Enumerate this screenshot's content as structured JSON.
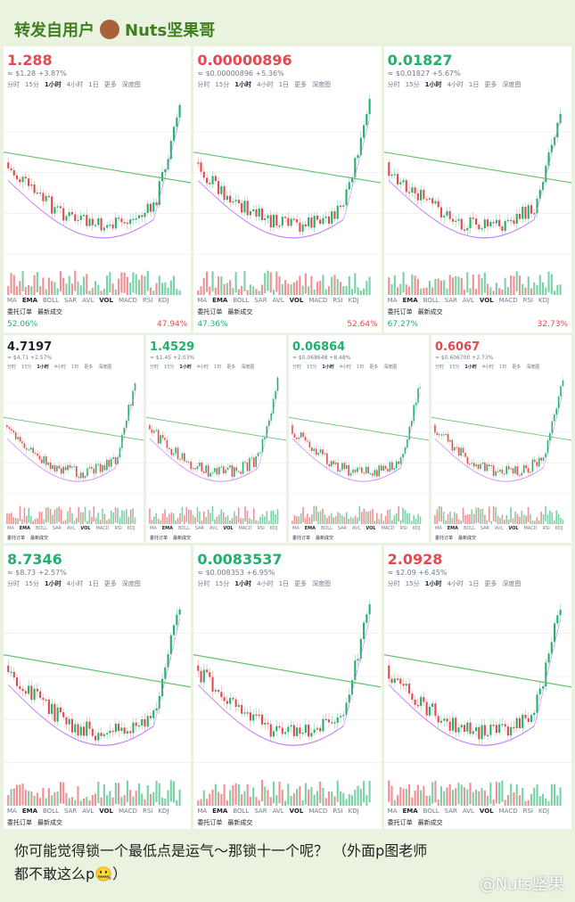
{
  "header": {
    "label": "转发自用户",
    "user": "Nuts坚果哥"
  },
  "tabs": [
    "分时",
    "15分",
    "1小时",
    "4小时",
    "1日",
    "更多",
    "深度图"
  ],
  "indicators": [
    "MA",
    "EMA",
    "BOLL",
    "SAR",
    "AVL",
    "VOL",
    "MACD",
    "RSI",
    "KDJ"
  ],
  "buttons": [
    "委托订单",
    "最新成交"
  ],
  "rows": [
    [
      {
        "price": "1.288",
        "sub": "≈ $1.28 +3.87%",
        "color": "#e5484d",
        "buy": "52.06%",
        "sell": "47.94%"
      },
      {
        "price": "0.00000896",
        "sub": "≈ $0.00000896 +5.36%",
        "color": "#e5484d",
        "buy": "47.36%",
        "sell": "52.64%"
      },
      {
        "price": "0.01827",
        "sub": "≈ $0.01827 +5.67%",
        "color": "#20b26c",
        "buy": "67.27%",
        "sell": "32.73%"
      }
    ],
    [
      {
        "price": "4.7197",
        "sub": "≈ $4.71 +2.57%",
        "color": "#1e2329"
      },
      {
        "price": "1.4529",
        "sub": "≈ $1.45 +2.03%",
        "color": "#20b26c"
      },
      {
        "price": "0.06864",
        "sub": "≈ $0.068648 +8.48%",
        "color": "#20b26c"
      },
      {
        "price": "0.6067",
        "sub": "≈ $0.606700 +2.73%",
        "color": "#e5484d"
      }
    ],
    [
      {
        "price": "8.7346",
        "sub": "≈ $8.73 +2.57%",
        "color": "#20b26c"
      },
      {
        "price": "0.0083537",
        "sub": "≈ $0.008353 +6.95%",
        "color": "#20b26c"
      },
      {
        "price": "2.0928",
        "sub": "≈ $2.09 +6.45%",
        "color": "#e5484d"
      }
    ]
  ],
  "caption": "你可能觉得锁一个最低点是运气～那锁十一个呢？ （外面p图老师都不敢这么p🤐）",
  "watermark": "@Nuts坚果"
}
